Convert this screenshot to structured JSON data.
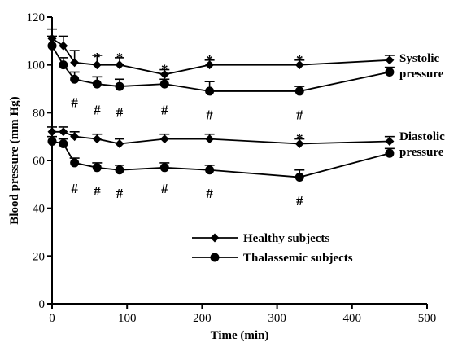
{
  "chart_data": {
    "type": "line",
    "xlabel": "Time (min)",
    "ylabel": "Blood pressure (mm Hg)",
    "xlim": [
      0,
      500
    ],
    "ylim": [
      0,
      120
    ],
    "xticks": [
      0,
      100,
      200,
      300,
      400,
      500
    ],
    "yticks": [
      0,
      20,
      40,
      60,
      80,
      100,
      120
    ],
    "grid": false,
    "legend_placement": "bottom-center",
    "groups": [
      {
        "name": "Healthy subjects",
        "marker": "diamond",
        "color": "#000000"
      },
      {
        "name": "Thalassemic subjects",
        "marker": "circle",
        "color": "#000000"
      }
    ],
    "series": [
      {
        "group": "Healthy subjects",
        "measure": "systolic",
        "x": [
          0,
          15,
          30,
          60,
          90,
          150,
          210,
          330,
          450
        ],
        "y": [
          111,
          108,
          101,
          100,
          100,
          96,
          100,
          100,
          102
        ],
        "err": [
          4,
          4,
          5,
          4,
          3,
          2,
          2,
          2,
          2
        ]
      },
      {
        "group": "Thalassemic subjects",
        "measure": "systolic",
        "x": [
          0,
          15,
          30,
          60,
          90,
          150,
          210,
          330,
          450
        ],
        "y": [
          108,
          100,
          94,
          92,
          91,
          92,
          89,
          89,
          97
        ],
        "err": [
          4,
          3,
          3,
          3,
          3,
          2,
          4,
          2,
          2
        ]
      },
      {
        "group": "Healthy subjects",
        "measure": "diastolic",
        "x": [
          0,
          15,
          30,
          60,
          90,
          150,
          210,
          330,
          450
        ],
        "y": [
          72,
          72,
          70,
          69,
          67,
          69,
          69,
          67,
          68
        ],
        "err": [
          2,
          2,
          2,
          2,
          2,
          2,
          2,
          2,
          2
        ]
      },
      {
        "group": "Thalassemic subjects",
        "measure": "diastolic",
        "x": [
          0,
          15,
          30,
          60,
          90,
          150,
          210,
          330,
          450
        ],
        "y": [
          68,
          67,
          59,
          57,
          56,
          57,
          56,
          53,
          63
        ],
        "err": [
          2,
          2,
          2,
          2,
          2,
          2,
          2,
          3,
          2
        ]
      }
    ],
    "annotations": {
      "systolic_label": "Systolic\npressure",
      "diastolic_label": "Diastolic\npressure",
      "healthy_marks": [
        {
          "symbol": "*",
          "x": 60,
          "y": 103
        },
        {
          "symbol": "*",
          "x": 90,
          "y": 103
        },
        {
          "symbol": "*",
          "x": 150,
          "y": 98
        },
        {
          "symbol": "*",
          "x": 210,
          "y": 102
        },
        {
          "symbol": "*",
          "x": 330,
          "y": 102
        },
        {
          "symbol": "*",
          "x": 330,
          "y": 69
        }
      ],
      "thalassemic_marks": [
        {
          "symbol": "#",
          "x": 30,
          "y": 84
        },
        {
          "symbol": "#",
          "x": 60,
          "y": 81
        },
        {
          "symbol": "#",
          "x": 90,
          "y": 80
        },
        {
          "symbol": "#",
          "x": 150,
          "y": 81
        },
        {
          "symbol": "#",
          "x": 210,
          "y": 79
        },
        {
          "symbol": "#",
          "x": 330,
          "y": 79
        },
        {
          "symbol": "#",
          "x": 30,
          "y": 48
        },
        {
          "symbol": "#",
          "x": 60,
          "y": 47
        },
        {
          "symbol": "#",
          "x": 90,
          "y": 46
        },
        {
          "symbol": "#",
          "x": 150,
          "y": 48
        },
        {
          "symbol": "#",
          "x": 210,
          "y": 46
        },
        {
          "symbol": "#",
          "x": 330,
          "y": 43
        }
      ]
    }
  }
}
